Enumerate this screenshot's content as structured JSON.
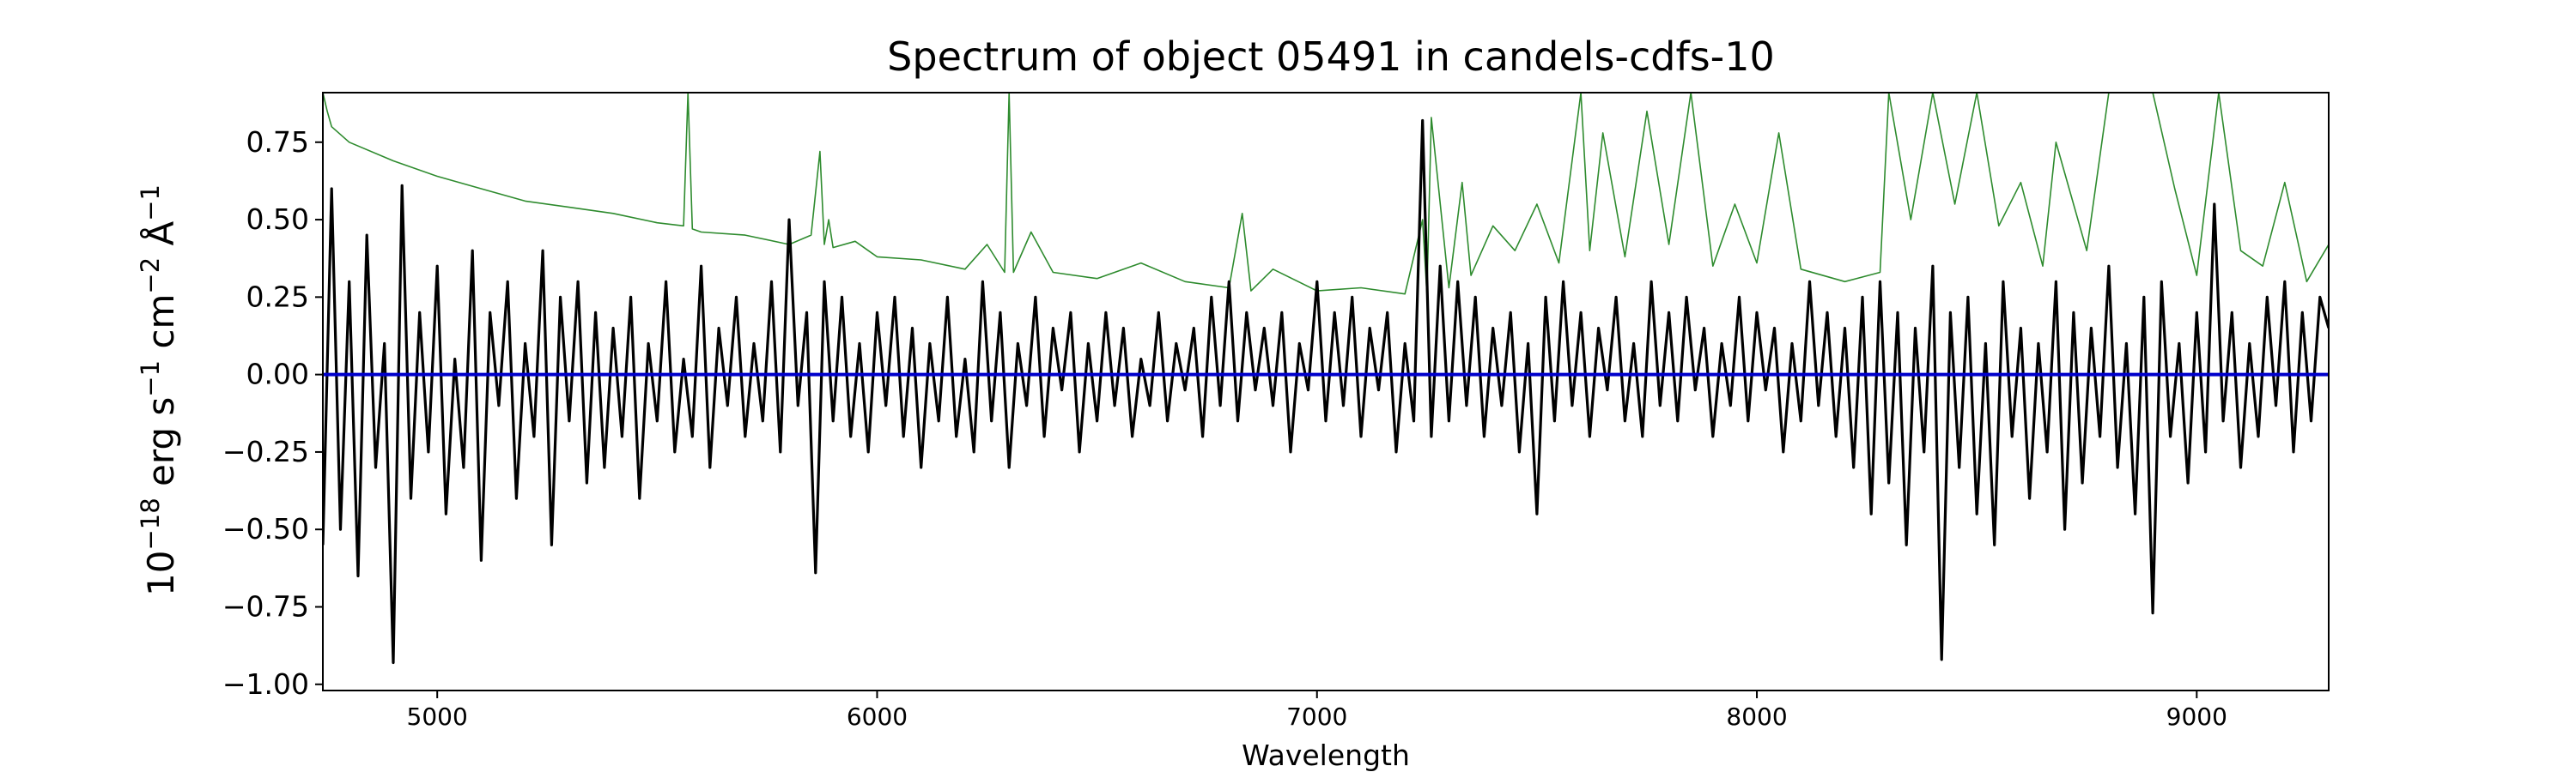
{
  "chart_data": {
    "type": "line",
    "title": "Spectrum of object 05491 in candels-cdfs-10",
    "xlabel": "Wavelength",
    "ylabel_parts": [
      "10",
      "−18",
      " erg s",
      "−1",
      " cm",
      "−2",
      " Å",
      "−1"
    ],
    "xlim": [
      4740,
      9300
    ],
    "ylim": [
      -1.02,
      0.91
    ],
    "xticks": [
      5000,
      6000,
      7000,
      8000,
      9000
    ],
    "xtick_labels": [
      "5000",
      "6000",
      "7000",
      "8000",
      "9000"
    ],
    "yticks": [
      0.75,
      0.5,
      0.25,
      0.0,
      -0.25,
      -0.5,
      -0.75,
      -1.0
    ],
    "ytick_labels": [
      "0.75",
      "0.50",
      "0.25",
      "0.00",
      "−0.25",
      "−0.50",
      "−0.75",
      "−1.00"
    ],
    "grid": false,
    "legend": "none",
    "series": [
      {
        "role": "model",
        "color": "#0000cc",
        "x": [
          4740,
          9300
        ],
        "y": [
          0.0,
          0.0
        ]
      },
      {
        "role": "error",
        "color": "#2e8b2e",
        "x": [
          4740,
          4750,
          4760,
          4800,
          4900,
          5000,
          5100,
          5200,
          5300,
          5400,
          5500,
          5560,
          5570,
          5580,
          5600,
          5700,
          5800,
          5850,
          5870,
          5880,
          5890,
          5900,
          5950,
          6000,
          6100,
          6200,
          6250,
          6290,
          6300,
          6310,
          6350,
          6400,
          6500,
          6600,
          6700,
          6800,
          6830,
          6850,
          6900,
          7000,
          7100,
          7200,
          7240,
          7250,
          7260,
          7300,
          7330,
          7350,
          7400,
          7450,
          7500,
          7550,
          7600,
          7620,
          7650,
          7700,
          7750,
          7800,
          7850,
          7900,
          7950,
          8000,
          8050,
          8100,
          8200,
          8280,
          8300,
          8350,
          8400,
          8450,
          8500,
          8550,
          8600,
          8650,
          8680,
          8700,
          8750,
          8800,
          8850,
          8900,
          8950,
          9000,
          9050,
          9100,
          9150,
          9200,
          9250,
          9300
        ],
        "y": [
          0.91,
          0.85,
          0.8,
          0.75,
          0.69,
          0.64,
          0.6,
          0.56,
          0.54,
          0.52,
          0.49,
          0.48,
          0.91,
          0.47,
          0.46,
          0.45,
          0.42,
          0.45,
          0.72,
          0.42,
          0.5,
          0.41,
          0.43,
          0.38,
          0.37,
          0.34,
          0.42,
          0.33,
          0.91,
          0.33,
          0.46,
          0.33,
          0.31,
          0.36,
          0.3,
          0.28,
          0.52,
          0.27,
          0.34,
          0.27,
          0.28,
          0.26,
          0.5,
          0.26,
          0.83,
          0.28,
          0.62,
          0.32,
          0.48,
          0.4,
          0.55,
          0.36,
          0.91,
          0.4,
          0.78,
          0.38,
          0.85,
          0.42,
          0.91,
          0.35,
          0.55,
          0.36,
          0.78,
          0.34,
          0.3,
          0.33,
          0.91,
          0.5,
          0.91,
          0.55,
          0.91,
          0.48,
          0.62,
          0.35,
          0.75,
          0.65,
          0.4,
          0.91,
          0.91,
          0.91,
          0.6,
          0.32,
          0.91,
          0.4,
          0.35,
          0.62,
          0.3,
          0.42
        ]
      },
      {
        "role": "data",
        "color": "#000000",
        "x": [
          4740,
          4760,
          4780,
          4800,
          4820,
          4840,
          4860,
          4880,
          4900,
          4920,
          4940,
          4960,
          4980,
          5000,
          5020,
          5040,
          5060,
          5080,
          5100,
          5120,
          5140,
          5160,
          5180,
          5200,
          5220,
          5240,
          5260,
          5280,
          5300,
          5320,
          5340,
          5360,
          5380,
          5400,
          5420,
          5440,
          5460,
          5480,
          5500,
          5520,
          5540,
          5560,
          5580,
          5600,
          5620,
          5640,
          5660,
          5680,
          5700,
          5720,
          5740,
          5760,
          5780,
          5800,
          5820,
          5840,
          5860,
          5880,
          5900,
          5920,
          5940,
          5960,
          5980,
          6000,
          6020,
          6040,
          6060,
          6080,
          6100,
          6120,
          6140,
          6160,
          6180,
          6200,
          6220,
          6240,
          6260,
          6280,
          6300,
          6320,
          6340,
          6360,
          6380,
          6400,
          6420,
          6440,
          6460,
          6480,
          6500,
          6520,
          6540,
          6560,
          6580,
          6600,
          6620,
          6640,
          6660,
          6680,
          6700,
          6720,
          6740,
          6760,
          6780,
          6800,
          6820,
          6840,
          6860,
          6880,
          6900,
          6920,
          6940,
          6960,
          6980,
          7000,
          7020,
          7040,
          7060,
          7080,
          7100,
          7120,
          7140,
          7160,
          7180,
          7200,
          7220,
          7240,
          7260,
          7280,
          7300,
          7320,
          7340,
          7360,
          7380,
          7400,
          7420,
          7440,
          7460,
          7480,
          7500,
          7520,
          7540,
          7560,
          7580,
          7600,
          7620,
          7640,
          7660,
          7680,
          7700,
          7720,
          7740,
          7760,
          7780,
          7800,
          7820,
          7840,
          7860,
          7880,
          7900,
          7920,
          7940,
          7960,
          7980,
          8000,
          8020,
          8040,
          8060,
          8080,
          8100,
          8120,
          8140,
          8160,
          8180,
          8200,
          8220,
          8240,
          8260,
          8280,
          8300,
          8320,
          8340,
          8360,
          8380,
          8400,
          8420,
          8440,
          8460,
          8480,
          8500,
          8520,
          8540,
          8560,
          8580,
          8600,
          8620,
          8640,
          8660,
          8680,
          8700,
          8720,
          8740,
          8760,
          8780,
          8800,
          8820,
          8840,
          8860,
          8880,
          8900,
          8920,
          8940,
          8960,
          8980,
          9000,
          9020,
          9040,
          9060,
          9080,
          9100,
          9120,
          9140,
          9160,
          9180,
          9200,
          9220,
          9240,
          9260,
          9280,
          9300
        ],
        "y": [
          -0.55,
          0.6,
          -0.5,
          0.3,
          -0.65,
          0.45,
          -0.3,
          0.1,
          -0.93,
          0.61,
          -0.4,
          0.2,
          -0.25,
          0.35,
          -0.45,
          0.05,
          -0.3,
          0.4,
          -0.6,
          0.2,
          -0.1,
          0.3,
          -0.4,
          0.1,
          -0.2,
          0.4,
          -0.55,
          0.25,
          -0.15,
          0.3,
          -0.35,
          0.2,
          -0.3,
          0.15,
          -0.2,
          0.25,
          -0.4,
          0.1,
          -0.15,
          0.3,
          -0.25,
          0.05,
          -0.2,
          0.35,
          -0.3,
          0.15,
          -0.1,
          0.25,
          -0.2,
          0.1,
          -0.15,
          0.3,
          -0.25,
          0.5,
          -0.1,
          0.2,
          -0.64,
          0.3,
          -0.15,
          0.25,
          -0.2,
          0.1,
          -0.25,
          0.2,
          -0.1,
          0.25,
          -0.2,
          0.15,
          -0.3,
          0.1,
          -0.15,
          0.25,
          -0.2,
          0.05,
          -0.25,
          0.3,
          -0.15,
          0.2,
          -0.3,
          0.1,
          -0.1,
          0.25,
          -0.2,
          0.15,
          -0.05,
          0.2,
          -0.25,
          0.1,
          -0.15,
          0.2,
          -0.1,
          0.15,
          -0.2,
          0.05,
          -0.1,
          0.2,
          -0.15,
          0.1,
          -0.05,
          0.15,
          -0.2,
          0.25,
          -0.1,
          0.3,
          -0.15,
          0.2,
          -0.05,
          0.15,
          -0.1,
          0.2,
          -0.25,
          0.1,
          -0.05,
          0.3,
          -0.15,
          0.2,
          -0.1,
          0.25,
          -0.2,
          0.15,
          -0.05,
          0.2,
          -0.25,
          0.1,
          -0.15,
          0.82,
          -0.2,
          0.35,
          -0.15,
          0.3,
          -0.1,
          0.25,
          -0.2,
          0.15,
          -0.1,
          0.2,
          -0.25,
          0.1,
          -0.45,
          0.25,
          -0.15,
          0.3,
          -0.1,
          0.2,
          -0.2,
          0.15,
          -0.05,
          0.25,
          -0.15,
          0.1,
          -0.2,
          0.3,
          -0.1,
          0.2,
          -0.15,
          0.25,
          -0.05,
          0.15,
          -0.2,
          0.1,
          -0.1,
          0.25,
          -0.15,
          0.2,
          -0.05,
          0.15,
          -0.25,
          0.1,
          -0.15,
          0.3,
          -0.1,
          0.2,
          -0.2,
          0.15,
          -0.3,
          0.25,
          -0.45,
          0.3,
          -0.35,
          0.2,
          -0.55,
          0.15,
          -0.25,
          0.35,
          -0.92,
          0.2,
          -0.3,
          0.25,
          -0.45,
          0.1,
          -0.55,
          0.3,
          -0.2,
          0.15,
          -0.4,
          0.1,
          -0.25,
          0.3,
          -0.5,
          0.2,
          -0.35,
          0.15,
          -0.2,
          0.35,
          -0.3,
          0.1,
          -0.45,
          0.25,
          -0.77,
          0.3,
          -0.2,
          0.1,
          -0.35,
          0.2,
          -0.25,
          0.55,
          -0.15,
          0.2,
          -0.3,
          0.1,
          -0.2,
          0.25,
          -0.1,
          0.3,
          -0.25,
          0.2,
          -0.15,
          0.25,
          0.15
        ]
      }
    ]
  }
}
